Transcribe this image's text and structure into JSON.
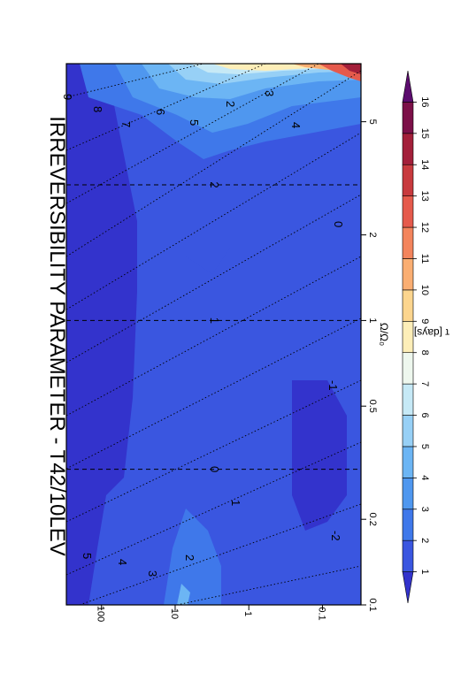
{
  "chart_data": {
    "type": "heatmap",
    "title": "IRREVERSIBILITY PARAMETER - T42/10LEV",
    "xlabel": "Ω/Ω₀",
    "ylabel": "τ [days]",
    "x_scale": "log",
    "y_scale": "log",
    "xlim": [
      0.1,
      8
    ],
    "ylim": [
      0.03,
      300
    ],
    "x_ticks": [
      {
        "value": 0.1,
        "label": "0.1"
      },
      {
        "value": 0.2,
        "label": "0.2"
      },
      {
        "value": 0.5,
        "label": "0.5"
      },
      {
        "value": 1,
        "label": "1"
      },
      {
        "value": 2,
        "label": "2"
      },
      {
        "value": 5,
        "label": "5"
      }
    ],
    "y_ticks": [
      {
        "value": 100,
        "label": "100"
      },
      {
        "value": 10,
        "label": "10"
      },
      {
        "value": 1,
        "label": "1"
      },
      {
        "value": 0.1,
        "label": "0.1"
      }
    ],
    "dashed_x_lines": [
      0.3,
      1,
      3
    ],
    "dashed_x_line_labels": [
      "0",
      "1",
      "2"
    ],
    "dotted_line_labels": [
      "-2",
      "-1",
      "0",
      "1",
      "2",
      "3",
      "4",
      "5",
      "6",
      "7",
      "8",
      "9"
    ],
    "colorbar": {
      "ticks": [
        "1",
        "2",
        "3",
        "4",
        "5",
        "6",
        "7",
        "8",
        "9",
        "10",
        "11",
        "12",
        "13",
        "14",
        "15",
        "16"
      ],
      "colors": [
        "#3333cc",
        "#3a56e0",
        "#3f78ea",
        "#4f97ef",
        "#6cb5f4",
        "#97d0f6",
        "#c6e9f6",
        "#eef7ee",
        "#fdeeb8",
        "#fcd58e",
        "#faae72",
        "#f3845c",
        "#e55a4c",
        "#c83a3e",
        "#a31f3a",
        "#7c1048",
        "#5c0c6e"
      ]
    },
    "regions": [
      {
        "level": 1,
        "label": "dark blue region upper-left"
      },
      {
        "level": 1,
        "label": "dark blue patch lower-middle"
      }
    ]
  }
}
